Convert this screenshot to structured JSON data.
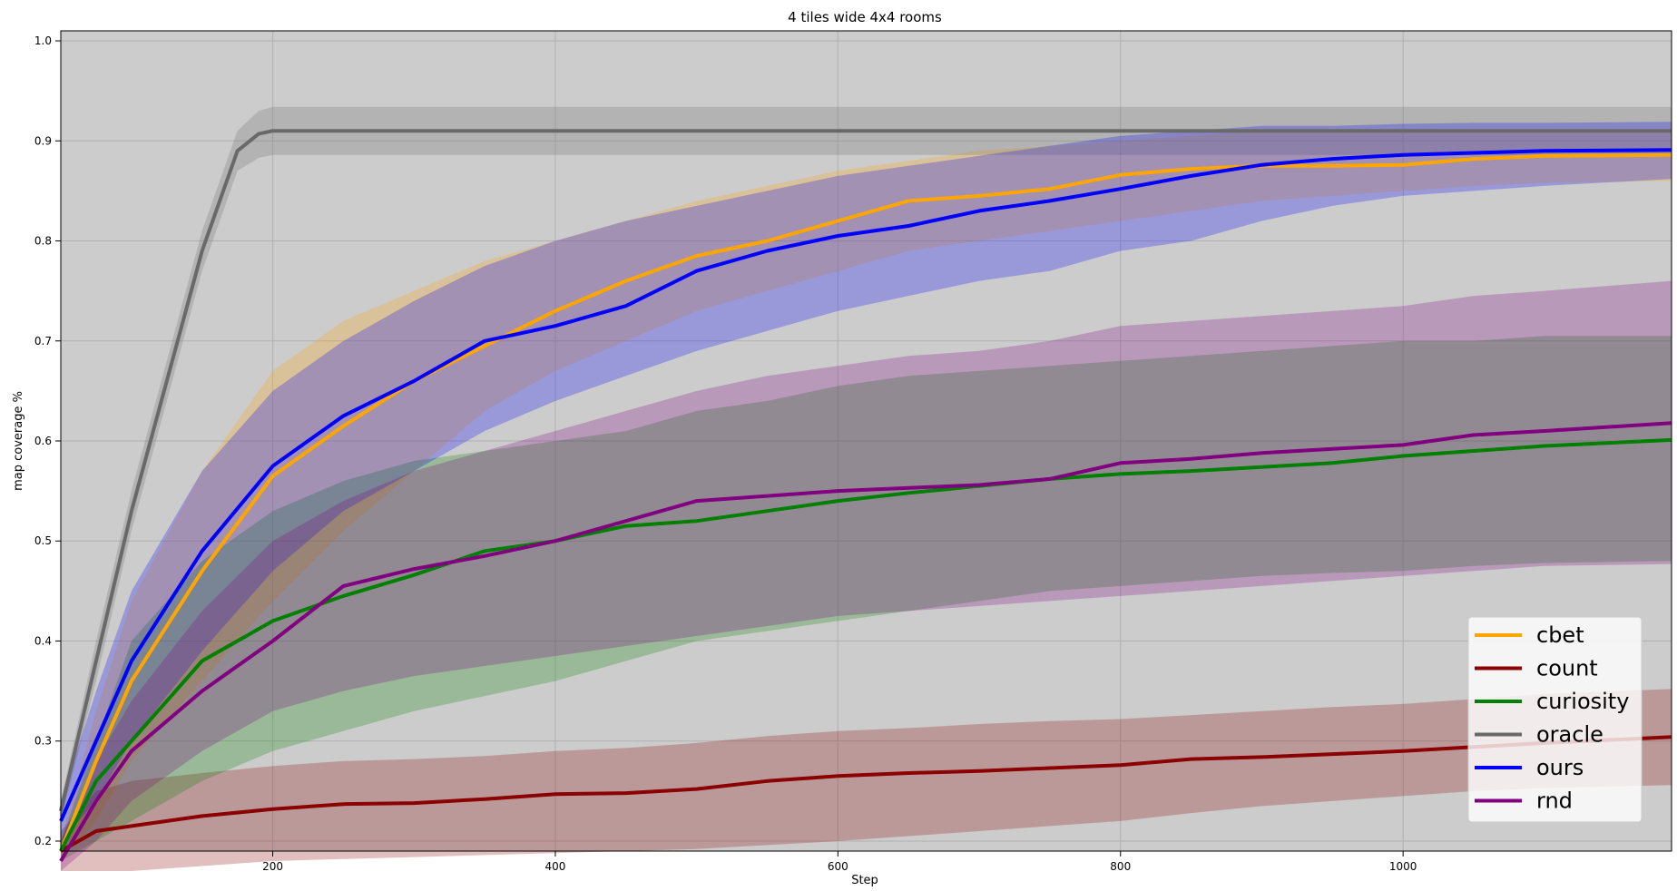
{
  "chart_data": {
    "type": "line",
    "title": "4 tiles wide 4x4 rooms",
    "xlabel": "Step",
    "ylabel": "map coverage %",
    "xlim": [
      50,
      1190
    ],
    "ylim": [
      0.19,
      1.01
    ],
    "xticks": [
      "200",
      "400",
      "600",
      "800",
      "1000"
    ],
    "xtick_values": [
      200,
      400,
      600,
      800,
      1000
    ],
    "yticks": [
      "0.2",
      "0.3",
      "0.4",
      "0.5",
      "0.6",
      "0.7",
      "0.8",
      "0.9",
      "1.0"
    ],
    "ytick_values": [
      0.2,
      0.3,
      0.4,
      0.5,
      0.6,
      0.7,
      0.8,
      0.9,
      1.0
    ],
    "grid": true,
    "background": "#cccccc",
    "legend_position": "lower-right",
    "series": [
      {
        "name": "cbet",
        "color": "#ffa500",
        "x": [
          50,
          75,
          100,
          150,
          200,
          250,
          300,
          350,
          400,
          450,
          500,
          550,
          600,
          650,
          700,
          750,
          800,
          850,
          900,
          950,
          1000,
          1050,
          1100,
          1190
        ],
        "mean": [
          0.19,
          0.28,
          0.36,
          0.47,
          0.565,
          0.615,
          0.66,
          0.695,
          0.73,
          0.76,
          0.785,
          0.8,
          0.82,
          0.84,
          0.845,
          0.852,
          0.866,
          0.872,
          0.875,
          0.875,
          0.876,
          0.882,
          0.885,
          0.886
        ],
        "lower": [
          0.18,
          0.22,
          0.28,
          0.36,
          0.44,
          0.51,
          0.57,
          0.63,
          0.67,
          0.7,
          0.73,
          0.75,
          0.77,
          0.79,
          0.8,
          0.81,
          0.82,
          0.83,
          0.84,
          0.845,
          0.85,
          0.855,
          0.858,
          0.86
        ],
        "upper": [
          0.2,
          0.33,
          0.44,
          0.57,
          0.67,
          0.72,
          0.75,
          0.78,
          0.8,
          0.82,
          0.84,
          0.855,
          0.87,
          0.88,
          0.89,
          0.895,
          0.9,
          0.905,
          0.91,
          0.91,
          0.91,
          0.91,
          0.91,
          0.91
        ]
      },
      {
        "name": "count",
        "color": "#8b0000",
        "x": [
          50,
          75,
          100,
          150,
          200,
          250,
          300,
          350,
          400,
          450,
          500,
          550,
          600,
          650,
          700,
          750,
          800,
          850,
          900,
          950,
          1000,
          1050,
          1100,
          1190
        ],
        "mean": [
          0.19,
          0.21,
          0.215,
          0.225,
          0.232,
          0.237,
          0.238,
          0.242,
          0.247,
          0.248,
          0.252,
          0.26,
          0.265,
          0.268,
          0.27,
          0.273,
          0.276,
          0.282,
          0.284,
          0.287,
          0.29,
          0.294,
          0.298,
          0.304
        ],
        "lower": [
          0.17,
          0.17,
          0.17,
          0.175,
          0.18,
          0.182,
          0.184,
          0.186,
          0.188,
          0.19,
          0.192,
          0.196,
          0.2,
          0.205,
          0.21,
          0.215,
          0.22,
          0.228,
          0.235,
          0.24,
          0.245,
          0.25,
          0.253,
          0.256
        ],
        "upper": [
          0.21,
          0.25,
          0.26,
          0.268,
          0.275,
          0.28,
          0.282,
          0.285,
          0.29,
          0.293,
          0.298,
          0.305,
          0.31,
          0.313,
          0.317,
          0.32,
          0.322,
          0.326,
          0.33,
          0.334,
          0.337,
          0.342,
          0.347,
          0.352
        ]
      },
      {
        "name": "curiosity",
        "color": "#008000",
        "x": [
          50,
          75,
          100,
          150,
          200,
          250,
          300,
          350,
          400,
          450,
          500,
          550,
          600,
          650,
          700,
          750,
          800,
          850,
          900,
          950,
          1000,
          1050,
          1100,
          1190
        ],
        "mean": [
          0.19,
          0.26,
          0.3,
          0.38,
          0.42,
          0.445,
          0.466,
          0.49,
          0.5,
          0.515,
          0.52,
          0.53,
          0.54,
          0.548,
          0.555,
          0.562,
          0.567,
          0.57,
          0.574,
          0.578,
          0.585,
          0.59,
          0.595,
          0.601
        ],
        "lower": [
          0.18,
          0.2,
          0.22,
          0.26,
          0.29,
          0.31,
          0.33,
          0.345,
          0.36,
          0.38,
          0.4,
          0.41,
          0.42,
          0.43,
          0.44,
          0.45,
          0.455,
          0.46,
          0.465,
          0.468,
          0.47,
          0.475,
          0.478,
          0.48
        ],
        "upper": [
          0.2,
          0.3,
          0.4,
          0.48,
          0.53,
          0.56,
          0.58,
          0.59,
          0.6,
          0.61,
          0.63,
          0.64,
          0.655,
          0.665,
          0.67,
          0.675,
          0.68,
          0.685,
          0.69,
          0.695,
          0.7,
          0.7,
          0.705,
          0.705
        ]
      },
      {
        "name": "oracle",
        "color": "#696969",
        "x": [
          50,
          75,
          100,
          125,
          150,
          175,
          190,
          200,
          250,
          400,
          600,
          800,
          1000,
          1190
        ],
        "mean": [
          0.23,
          0.38,
          0.53,
          0.66,
          0.79,
          0.89,
          0.907,
          0.91,
          0.91,
          0.91,
          0.91,
          0.91,
          0.91,
          0.91
        ],
        "lower": [
          0.22,
          0.36,
          0.51,
          0.64,
          0.77,
          0.87,
          0.883,
          0.886,
          0.886,
          0.886,
          0.886,
          0.886,
          0.886,
          0.886
        ],
        "upper": [
          0.24,
          0.4,
          0.55,
          0.68,
          0.81,
          0.91,
          0.93,
          0.934,
          0.934,
          0.934,
          0.934,
          0.934,
          0.934,
          0.934
        ]
      },
      {
        "name": "ours",
        "color": "#0000ff",
        "x": [
          50,
          75,
          100,
          150,
          200,
          250,
          300,
          350,
          400,
          450,
          500,
          550,
          600,
          650,
          700,
          750,
          800,
          850,
          900,
          950,
          1000,
          1050,
          1100,
          1190
        ],
        "mean": [
          0.22,
          0.3,
          0.38,
          0.49,
          0.575,
          0.625,
          0.66,
          0.7,
          0.715,
          0.735,
          0.77,
          0.79,
          0.805,
          0.815,
          0.83,
          0.84,
          0.852,
          0.865,
          0.876,
          0.882,
          0.886,
          0.888,
          0.89,
          0.891
        ],
        "lower": [
          0.2,
          0.24,
          0.3,
          0.39,
          0.47,
          0.53,
          0.57,
          0.61,
          0.64,
          0.665,
          0.69,
          0.71,
          0.73,
          0.745,
          0.76,
          0.77,
          0.79,
          0.8,
          0.82,
          0.835,
          0.845,
          0.85,
          0.855,
          0.862
        ],
        "upper": [
          0.24,
          0.35,
          0.45,
          0.57,
          0.65,
          0.7,
          0.74,
          0.775,
          0.8,
          0.82,
          0.835,
          0.85,
          0.865,
          0.875,
          0.885,
          0.895,
          0.905,
          0.91,
          0.915,
          0.915,
          0.917,
          0.918,
          0.918,
          0.919
        ]
      },
      {
        "name": "rnd",
        "color": "#800080",
        "x": [
          50,
          75,
          100,
          150,
          200,
          250,
          300,
          350,
          400,
          450,
          500,
          550,
          600,
          650,
          700,
          750,
          800,
          850,
          900,
          950,
          1000,
          1050,
          1100,
          1190
        ],
        "mean": [
          0.18,
          0.24,
          0.29,
          0.35,
          0.4,
          0.455,
          0.472,
          0.485,
          0.5,
          0.52,
          0.54,
          0.545,
          0.55,
          0.553,
          0.556,
          0.562,
          0.578,
          0.582,
          0.588,
          0.592,
          0.596,
          0.606,
          0.61,
          0.618
        ],
        "lower": [
          0.17,
          0.2,
          0.24,
          0.29,
          0.33,
          0.35,
          0.365,
          0.375,
          0.385,
          0.395,
          0.405,
          0.415,
          0.425,
          0.43,
          0.435,
          0.44,
          0.445,
          0.45,
          0.455,
          0.46,
          0.465,
          0.47,
          0.475,
          0.477
        ],
        "upper": [
          0.2,
          0.28,
          0.34,
          0.43,
          0.5,
          0.54,
          0.57,
          0.59,
          0.61,
          0.63,
          0.65,
          0.665,
          0.675,
          0.685,
          0.69,
          0.7,
          0.715,
          0.72,
          0.725,
          0.73,
          0.735,
          0.745,
          0.75,
          0.76
        ]
      }
    ]
  }
}
